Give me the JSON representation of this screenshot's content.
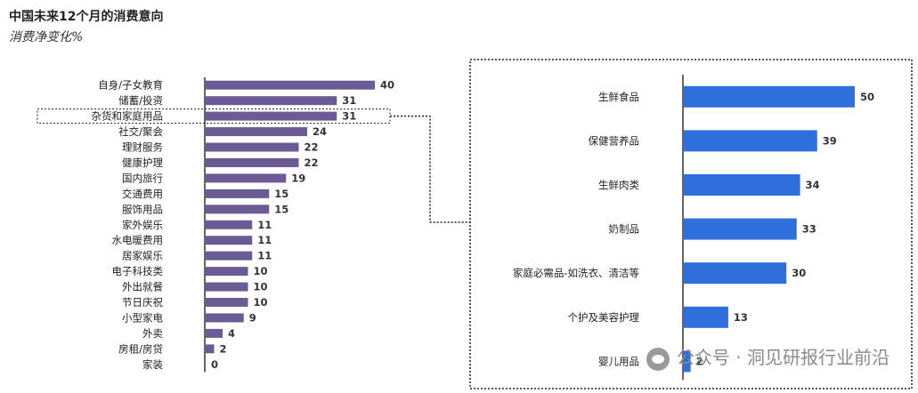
{
  "title": "中国未来12个月的消费意向",
  "subtitle": "消费净变化%",
  "watermark": "公众号 · 洞见研报行业前沿",
  "colors": {
    "left_bar": "#6b5b94",
    "right_bar": "#2f6fdc",
    "highlight_box": "#222222",
    "axis": "#333333"
  },
  "chart_data": [
    {
      "type": "bar",
      "orientation": "horizontal",
      "categories": [
        "自身/子女教育",
        "储蓄/投资",
        "杂货和家庭用品",
        "社交/聚会",
        "理财服务",
        "健康护理",
        "国内旅行",
        "交通费用",
        "服饰用品",
        "家外娱乐",
        "水电暖费用",
        "居家娱乐",
        "电子科技类",
        "外出就餐",
        "节日庆祝",
        "小型家电",
        "外卖",
        "房租/房贷",
        "家装"
      ],
      "values": [
        40,
        31,
        31,
        24,
        22,
        22,
        19,
        15,
        15,
        11,
        11,
        11,
        10,
        10,
        10,
        9,
        4,
        2,
        0
      ],
      "highlighted_category": "杂货和家庭用品",
      "xlim": [
        0,
        40
      ]
    },
    {
      "type": "bar",
      "orientation": "horizontal",
      "categories": [
        "生鲜食品",
        "保健营养品",
        "生鲜肉类",
        "奶制品",
        "家庭必需品-如洗衣、清洁等",
        "个护及美容护理",
        "婴儿用品"
      ],
      "values": [
        50,
        39,
        34,
        33,
        30,
        13,
        2
      ],
      "xlim": [
        0,
        50
      ]
    }
  ]
}
